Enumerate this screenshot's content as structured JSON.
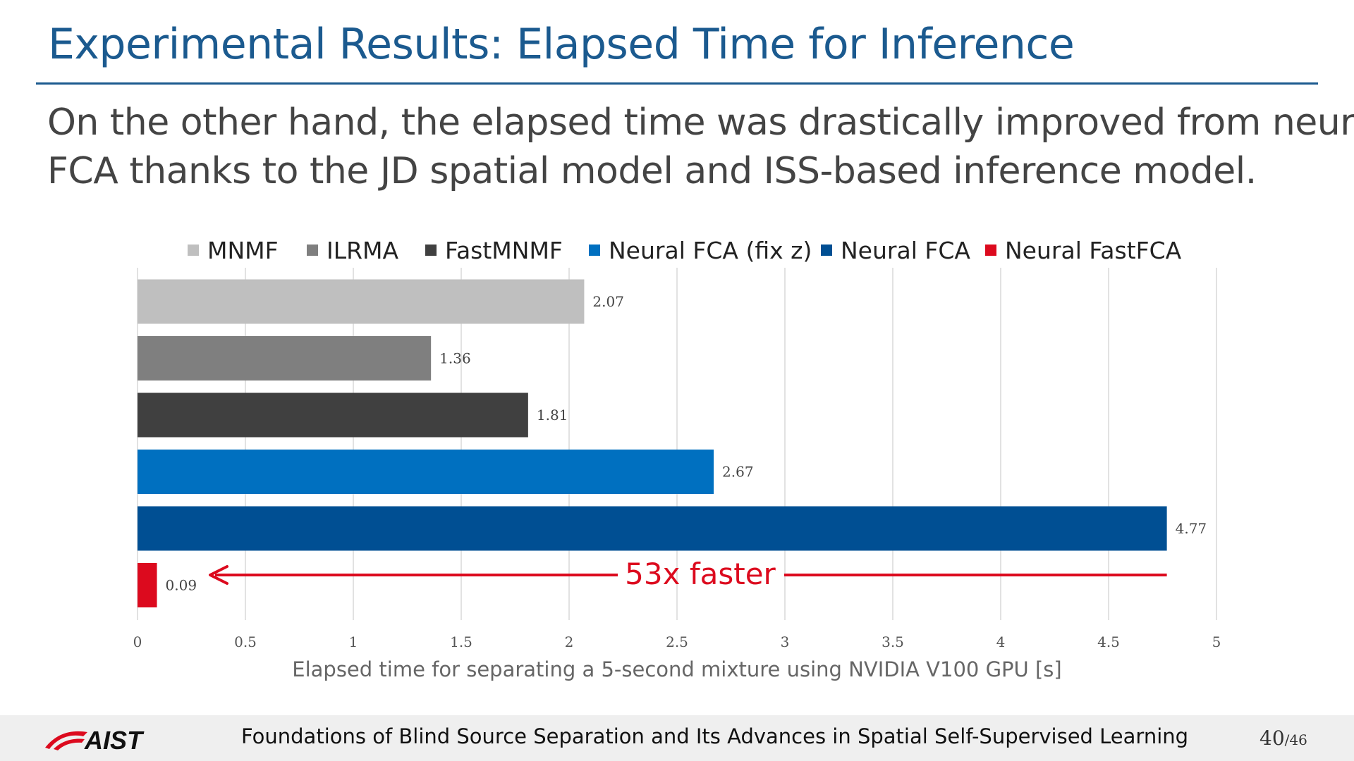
{
  "slide": {
    "title": "Experimental Results: Elapsed Time for Inference",
    "body_lines": [
      "On the other hand, the elapsed time was drastically improved from neural",
      "FCA thanks to the JD spatial model and ISS-based inference model."
    ]
  },
  "chart_data": {
    "type": "bar",
    "orientation": "horizontal",
    "categories": [
      "MNMF",
      "ILRMA",
      "FastMNMF",
      "Neural FCA (fix z)",
      "Neural FCA",
      "Neural FastFCA"
    ],
    "values": [
      2.07,
      1.36,
      1.81,
      2.67,
      4.77,
      0.09
    ],
    "value_labels": [
      "2.07",
      "1.36",
      "1.81",
      "2.67",
      "4.77",
      "0.09"
    ],
    "colors": [
      "#bfbfbf",
      "#7f7f7f",
      "#404040",
      "#0070c0",
      "#004f93",
      "#dc0a1e"
    ],
    "xlabel": "Elapsed time for separating a 5-second mixture using NVIDIA V100 GPU [s]",
    "xlim": [
      0,
      5
    ],
    "xticks": [
      0,
      0.5,
      1,
      1.5,
      2,
      2.5,
      3,
      3.5,
      4,
      4.5,
      5
    ],
    "xtick_labels": [
      "0",
      "0.5",
      "1",
      "1.5",
      "2",
      "2.5",
      "3",
      "3.5",
      "4",
      "4.5",
      "5"
    ],
    "grid": true,
    "legend_position": "top",
    "annotation": {
      "text": "53x faster",
      "from_value": 4.77,
      "to_value": 0.09,
      "color": "#dc0a1e"
    }
  },
  "footer": {
    "logo_text": "AIST",
    "text": "Foundations of Blind Source Separation and Its Advances in Spatial Self-Supervised Learning",
    "page_current": "40",
    "page_total": "/46"
  }
}
